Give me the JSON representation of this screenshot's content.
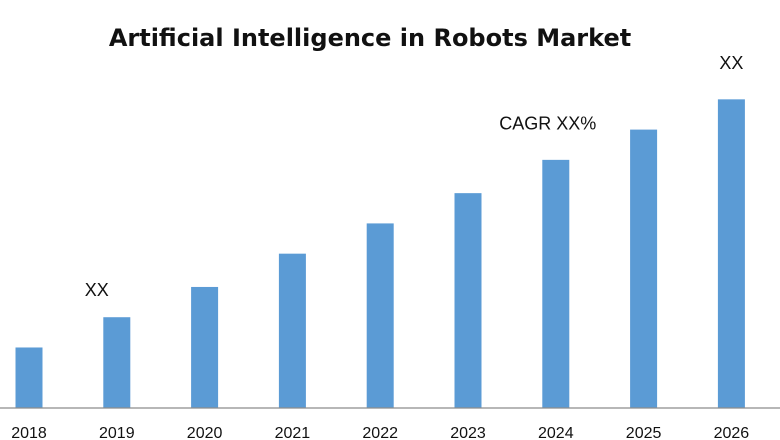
{
  "chart_data": {
    "type": "bar",
    "title": "Artificial Intelligence in Robots Market",
    "categories": [
      "2018",
      "2019",
      "2020",
      "2021",
      "2022",
      "2023",
      "2024",
      "2025",
      "2026"
    ],
    "values": [
      20,
      30,
      40,
      51,
      61,
      71,
      82,
      92,
      102
    ],
    "ylim": [
      0,
      115
    ],
    "xlabel": "",
    "ylabel": "",
    "grid": false,
    "bar_color": "#5b9bd5",
    "annotations": [
      {
        "text": "XX",
        "category": "2019",
        "value": 37
      },
      {
        "text": "CAGR XX%",
        "category": "2024",
        "value": 92
      },
      {
        "text": "XX",
        "category": "2026",
        "value": 112
      }
    ]
  }
}
